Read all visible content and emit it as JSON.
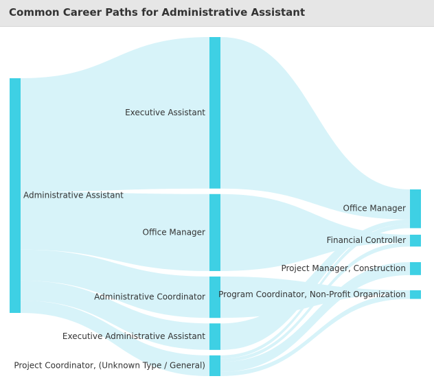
{
  "header": {
    "title": "Common Career Paths for Administrative Assistant"
  },
  "colors": {
    "node": "#3ed0e4",
    "link": "#d7f3f9",
    "header_bg": "#e6e6e6",
    "text": "#333333"
  },
  "chart_data": {
    "type": "sankey",
    "title": "Common Career Paths for Administrative Assistant",
    "columns": [
      [
        "Administrative Assistant"
      ],
      [
        "Executive Assistant",
        "Office Manager",
        "Administrative Coordinator",
        "Executive Administrative Assistant",
        "Project Coordinator, (Unknown Type / General)"
      ],
      [
        "Office Manager ",
        "Financial Controller",
        "Project Manager, Construction",
        "Program Coordinator, Non-Profit Organization"
      ]
    ],
    "nodes": [
      {
        "name": "Administrative Assistant",
        "label": "Administrative Assistant",
        "column": 0
      },
      {
        "name": "Executive Assistant",
        "label": "Executive Assistant",
        "column": 1
      },
      {
        "name": "Office Manager",
        "label": "Office Manager",
        "column": 1
      },
      {
        "name": "Administrative Coordinator",
        "label": "Administrative Coordinator",
        "column": 1
      },
      {
        "name": "Executive Administrative Assistant",
        "label": "Executive Administrative Assistant",
        "column": 1
      },
      {
        "name": "Project Coordinator, (Unknown Type / General)",
        "label": "Project Coordinator, (Unknown Type / General)",
        "column": 1
      },
      {
        "name": "Office Manager ",
        "label": "Office Manager",
        "column": 2
      },
      {
        "name": "Financial Controller",
        "label": "Financial Controller",
        "column": 2
      },
      {
        "name": "Project Manager, Construction",
        "label": "Project Manager, Construction",
        "column": 2
      },
      {
        "name": "Program Coordinator, Non-Profit Organization",
        "label": "Program Coordinator, Non-Profit Organization",
        "column": 2
      }
    ],
    "links": [
      {
        "source": "Administrative Assistant",
        "target": "Executive Assistant",
        "value": 183
      },
      {
        "source": "Administrative Assistant",
        "target": "Office Manager",
        "value": 93
      },
      {
        "source": "Administrative Assistant",
        "target": "Administrative Coordinator",
        "value": 50
      },
      {
        "source": "Administrative Assistant",
        "target": "Executive Administrative Assistant",
        "value": 32
      },
      {
        "source": "Administrative Assistant",
        "target": "Project Coordinator, (Unknown Type / General)",
        "value": 20
      },
      {
        "source": "Executive Assistant",
        "target": "Office Manager ",
        "value": 28
      },
      {
        "source": "Office Manager",
        "target": "Financial Controller",
        "value": 7
      },
      {
        "source": "Administrative Coordinator",
        "target": "Program Coordinator, Non-Profit Organization",
        "value": 3
      },
      {
        "source": "Executive Administrative Assistant",
        "target": "Office Manager ",
        "value": 4
      },
      {
        "source": "Project Coordinator, (Unknown Type / General)",
        "target": "Office Manager ",
        "value": 4
      },
      {
        "source": "Project Coordinator, (Unknown Type / General)",
        "target": "Financial Controller",
        "value": 4
      },
      {
        "source": "Project Coordinator, (Unknown Type / General)",
        "target": "Project Manager, Construction",
        "value": 12
      },
      {
        "source": "Project Coordinator, (Unknown Type / General)",
        "target": "Program Coordinator, Non-Profit Organization",
        "value": 5
      }
    ]
  }
}
